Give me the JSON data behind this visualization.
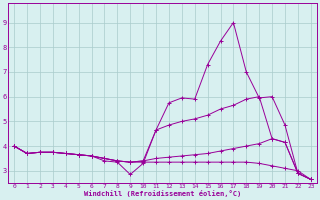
{
  "xlabel": "Windchill (Refroidissement éolien,°C)",
  "bg_color": "#d8f0f0",
  "line_color": "#990099",
  "grid_color": "#aacccc",
  "xlim": [
    -0.5,
    23.5
  ],
  "ylim": [
    2.5,
    9.8
  ],
  "xticks": [
    0,
    1,
    2,
    3,
    4,
    5,
    6,
    7,
    8,
    9,
    10,
    11,
    12,
    13,
    14,
    15,
    16,
    17,
    18,
    19,
    20,
    21,
    22,
    23
  ],
  "yticks": [
    3,
    4,
    5,
    6,
    7,
    8,
    9
  ],
  "lines": [
    {
      "x": [
        0,
        1,
        2,
        3,
        4,
        5,
        6,
        7,
        8,
        9,
        10,
        11,
        12,
        13,
        14,
        15,
        16,
        17,
        18,
        19,
        20,
        21,
        22,
        23
      ],
      "y": [
        4.0,
        3.7,
        3.75,
        3.75,
        3.7,
        3.65,
        3.6,
        3.4,
        3.35,
        2.85,
        3.3,
        4.65,
        5.75,
        5.95,
        5.9,
        7.3,
        8.25,
        9.0,
        7.0,
        5.95,
        6.0,
        4.85,
        2.9,
        2.65
      ]
    },
    {
      "x": [
        0,
        1,
        2,
        3,
        4,
        5,
        6,
        7,
        8,
        9,
        10,
        11,
        12,
        13,
        14,
        15,
        16,
        17,
        18,
        19,
        20,
        21,
        22,
        23
      ],
      "y": [
        4.0,
        3.7,
        3.75,
        3.75,
        3.7,
        3.65,
        3.6,
        3.5,
        3.4,
        3.35,
        3.4,
        4.65,
        4.85,
        5.0,
        5.1,
        5.25,
        5.5,
        5.65,
        5.9,
        6.0,
        4.3,
        4.15,
        2.9,
        2.65
      ]
    },
    {
      "x": [
        0,
        1,
        2,
        3,
        4,
        5,
        6,
        7,
        8,
        9,
        10,
        11,
        12,
        13,
        14,
        15,
        16,
        17,
        18,
        19,
        20,
        21,
        22,
        23
      ],
      "y": [
        4.0,
        3.7,
        3.75,
        3.75,
        3.7,
        3.65,
        3.6,
        3.5,
        3.4,
        3.35,
        3.4,
        3.5,
        3.55,
        3.6,
        3.65,
        3.7,
        3.8,
        3.9,
        4.0,
        4.1,
        4.3,
        4.15,
        2.9,
        2.65
      ]
    },
    {
      "x": [
        0,
        1,
        2,
        3,
        4,
        5,
        6,
        7,
        8,
        9,
        10,
        11,
        12,
        13,
        14,
        15,
        16,
        17,
        18,
        19,
        20,
        21,
        22,
        23
      ],
      "y": [
        4.0,
        3.7,
        3.75,
        3.75,
        3.7,
        3.65,
        3.6,
        3.5,
        3.4,
        3.35,
        3.35,
        3.35,
        3.35,
        3.35,
        3.35,
        3.35,
        3.35,
        3.35,
        3.35,
        3.3,
        3.2,
        3.1,
        3.0,
        2.65
      ]
    }
  ]
}
